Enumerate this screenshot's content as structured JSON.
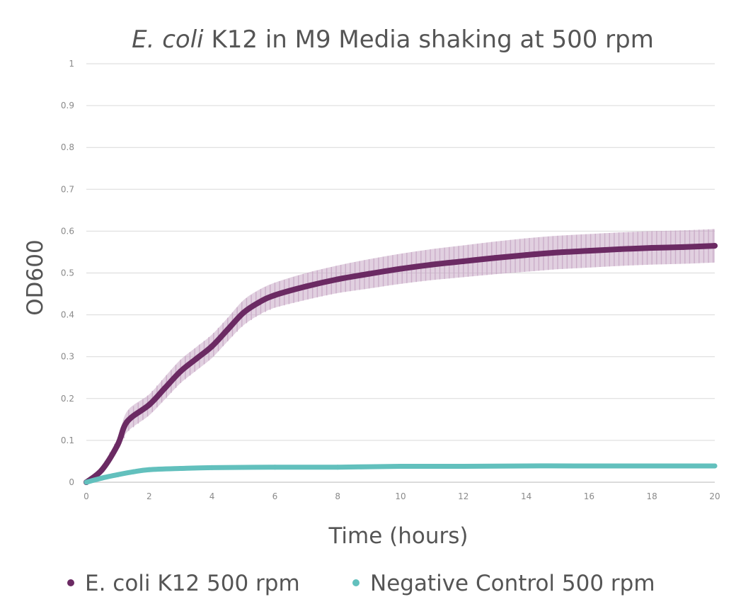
{
  "chart_data": {
    "type": "line",
    "title": "E. coli K12 in M9 Media shaking at 500 rpm",
    "title_italic_part": "E. coli",
    "title_rest": " K12 in M9 Media shaking at 500 rpm",
    "xlabel": "Time (hours)",
    "ylabel": "OD600",
    "xlim": [
      0,
      20
    ],
    "ylim": [
      0,
      1
    ],
    "grid": true,
    "legend_position": "bottom",
    "x_tick_labels": [
      "0",
      "2",
      "4",
      "6",
      "8",
      "10",
      "12",
      "14",
      "16",
      "18",
      "20"
    ],
    "y_tick_labels": [
      "0",
      "0.1",
      "0.2",
      "0.3",
      "0.4",
      "0.5",
      "0.6",
      "0.7",
      "0.8",
      "0.9",
      "1"
    ],
    "series": [
      {
        "name": "E. coli K12 500 rpm",
        "color": "#6b2a63",
        "band_color": "#c9aac6",
        "x": [
          0,
          0.5,
          1,
          1.3,
          2,
          2.5,
          3,
          3.5,
          4,
          4.5,
          5,
          5.5,
          6,
          7,
          8,
          9,
          10,
          11,
          12,
          13,
          14,
          15,
          16,
          17,
          18,
          19,
          20
        ],
        "y": [
          0,
          0.03,
          0.09,
          0.145,
          0.185,
          0.225,
          0.265,
          0.295,
          0.325,
          0.365,
          0.405,
          0.43,
          0.447,
          0.468,
          0.485,
          0.498,
          0.51,
          0.52,
          0.528,
          0.536,
          0.543,
          0.549,
          0.553,
          0.557,
          0.56,
          0.562,
          0.565
        ],
        "error": [
          0,
          0.008,
          0.015,
          0.025,
          0.025,
          0.027,
          0.028,
          0.028,
          0.028,
          0.028,
          0.03,
          0.03,
          0.03,
          0.032,
          0.033,
          0.035,
          0.036,
          0.037,
          0.038,
          0.039,
          0.04,
          0.04,
          0.04,
          0.04,
          0.04,
          0.04,
          0.04
        ]
      },
      {
        "name": "Negative Control 500 rpm",
        "color": "#62c0bd",
        "x": [
          0,
          0.5,
          1,
          1.5,
          2,
          3,
          4,
          6,
          8,
          10,
          12,
          14,
          16,
          18,
          20
        ],
        "y": [
          0,
          0.01,
          0.018,
          0.025,
          0.03,
          0.033,
          0.035,
          0.036,
          0.036,
          0.038,
          0.038,
          0.039,
          0.039,
          0.039,
          0.039
        ]
      }
    ]
  }
}
